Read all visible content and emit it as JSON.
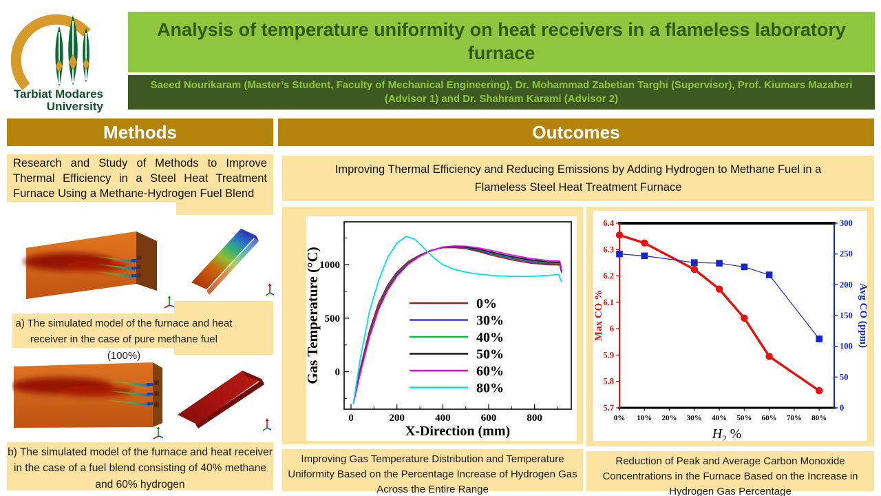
{
  "header": {
    "logo_text_line1": "Tarbiat Modares",
    "logo_text_line2": "University",
    "title": "Analysis of temperature uniformity on heat receivers in a flameless laboratory furnace",
    "authors": "Saeed Nourikaram (Master’s Student, Faculty of Mechanical Engineering), Dr. Mohammad Zabetian Targhi (Supervisor), Prof. Kiumars Mazaheri (Advisor 1) and Dr. Shahram Karami (Advisor 2)"
  },
  "methods": {
    "heading": "Methods",
    "intro": "Research and Study of Methods to Improve Thermal Efficiency in a Steel Heat Treatment Furnace Using a Methane-Hydrogen Fuel Blend",
    "caption_a": "a) The simulated model of the furnace and heat receiver in the case of pure methane fuel (100%)",
    "caption_b": "b) The simulated model of the furnace and heat receiver in the case of a fuel blend consisting of 40% methane and 60% hydrogen"
  },
  "outcomes": {
    "heading": "Outcomes",
    "intro": "Improving Thermal Efficiency and Reducing Emissions by Adding Hydrogen to Methane Fuel in a Flameless Steel Heat Treatment Furnace",
    "caption_temp": "Improving Gas Temperature Distribution and Temperature Uniformity Based on the Percentage Increase of Hydrogen Gas Across the Entire Range",
    "caption_co": "Reduction of Peak and Average Carbon Monoxide Concentrations in the Furnace Based on the Increase in Hydrogen Gas Percentage"
  },
  "colors": {
    "title_bg": "#8dc63f",
    "title_text": "#2f5b19",
    "authors_bg": "#3e5822",
    "authors_text": "#8dc63f",
    "section_bg": "#b4830b",
    "section_text": "#ffffff",
    "panel_bg": "#fce3a1",
    "max_co_red": "#e8100c",
    "avg_co_blue": "#1427c8"
  },
  "chart_data": [
    {
      "type": "line",
      "title": "",
      "xlabel": "X-Direction (mm)",
      "ylabel": "Gas Temperature (°C)",
      "xlim": [
        -30,
        960
      ],
      "ylim": [
        -350,
        1400
      ],
      "xticks": [
        0,
        200,
        400,
        600,
        800
      ],
      "xticks_minor": [
        100,
        300,
        500,
        700,
        900
      ],
      "yticks": [
        0,
        500,
        1000
      ],
      "yticks_minor": [
        -250,
        250,
        750,
        1250
      ],
      "grid": false,
      "legend_position": "inside-center",
      "series": [
        {
          "name": "0%",
          "color": "#a51b1b",
          "points": [
            [
              10,
              -300
            ],
            [
              40,
              30
            ],
            [
              80,
              380
            ],
            [
              120,
              640
            ],
            [
              160,
              810
            ],
            [
              200,
              930
            ],
            [
              250,
              1030
            ],
            [
              300,
              1090
            ],
            [
              350,
              1135
            ],
            [
              400,
              1158
            ],
            [
              450,
              1160
            ],
            [
              500,
              1150
            ],
            [
              560,
              1120
            ],
            [
              620,
              1085
            ],
            [
              700,
              1045
            ],
            [
              780,
              1015
            ],
            [
              860,
              1000
            ],
            [
              910,
              997
            ],
            [
              918,
              925
            ]
          ]
        },
        {
          "name": "30%",
          "color": "#3d3dc0",
          "points": [
            [
              10,
              -300
            ],
            [
              40,
              10
            ],
            [
              80,
              350
            ],
            [
              120,
              610
            ],
            [
              160,
              790
            ],
            [
              200,
              915
            ],
            [
              250,
              1020
            ],
            [
              300,
              1085
            ],
            [
              350,
              1133
            ],
            [
              400,
              1160
            ],
            [
              450,
              1165
            ],
            [
              500,
              1157
            ],
            [
              560,
              1130
            ],
            [
              620,
              1098
            ],
            [
              700,
              1058
            ],
            [
              780,
              1028
            ],
            [
              860,
              1010
            ],
            [
              910,
              1006
            ],
            [
              918,
              930
            ]
          ]
        },
        {
          "name": "40%",
          "color": "#00c040",
          "points": [
            [
              10,
              -300
            ],
            [
              40,
              0
            ],
            [
              80,
              340
            ],
            [
              120,
              600
            ],
            [
              160,
              780
            ],
            [
              200,
              905
            ],
            [
              250,
              1015
            ],
            [
              300,
              1082
            ],
            [
              350,
              1133
            ],
            [
              400,
              1162
            ],
            [
              450,
              1168
            ],
            [
              500,
              1161
            ],
            [
              560,
              1138
            ],
            [
              620,
              1108
            ],
            [
              700,
              1068
            ],
            [
              780,
              1038
            ],
            [
              860,
              1018
            ],
            [
              910,
              1013
            ],
            [
              918,
              938
            ]
          ]
        },
        {
          "name": "50%",
          "color": "#161616",
          "points": [
            [
              10,
              -300
            ],
            [
              40,
              -10
            ],
            [
              80,
              330
            ],
            [
              120,
              590
            ],
            [
              160,
              770
            ],
            [
              200,
              898
            ],
            [
              250,
              1010
            ],
            [
              300,
              1080
            ],
            [
              350,
              1132
            ],
            [
              400,
              1163
            ],
            [
              450,
              1170
            ],
            [
              500,
              1164
            ],
            [
              560,
              1143
            ],
            [
              620,
              1113
            ],
            [
              700,
              1075
            ],
            [
              780,
              1045
            ],
            [
              860,
              1025
            ],
            [
              910,
              1020
            ],
            [
              918,
              942
            ]
          ]
        },
        {
          "name": "60%",
          "color": "#f400f4",
          "points": [
            [
              10,
              -300
            ],
            [
              40,
              -20
            ],
            [
              80,
              320
            ],
            [
              120,
              580
            ],
            [
              160,
              762
            ],
            [
              200,
              892
            ],
            [
              250,
              1005
            ],
            [
              300,
              1078
            ],
            [
              350,
              1131
            ],
            [
              400,
              1165
            ],
            [
              450,
              1175
            ],
            [
              500,
              1172
            ],
            [
              560,
              1155
            ],
            [
              620,
              1128
            ],
            [
              700,
              1090
            ],
            [
              780,
              1058
            ],
            [
              860,
              1038
            ],
            [
              910,
              1033
            ],
            [
              918,
              948
            ]
          ]
        },
        {
          "name": "80%",
          "color": "#00dff0",
          "points": [
            [
              10,
              -300
            ],
            [
              40,
              120
            ],
            [
              80,
              560
            ],
            [
              120,
              850
            ],
            [
              160,
              1070
            ],
            [
              200,
              1200
            ],
            [
              240,
              1265
            ],
            [
              280,
              1235
            ],
            [
              320,
              1150
            ],
            [
              360,
              1065
            ],
            [
              400,
              1000
            ],
            [
              450,
              955
            ],
            [
              500,
              930
            ],
            [
              560,
              910
            ],
            [
              620,
              898
            ],
            [
              700,
              890
            ],
            [
              780,
              890
            ],
            [
              860,
              900
            ],
            [
              905,
              908
            ],
            [
              918,
              838
            ]
          ]
        }
      ]
    },
    {
      "type": "line",
      "title": "",
      "xlabel": "H2 %",
      "x_categories": [
        "0%",
        "10%",
        "20%",
        "30%",
        "40%",
        "50%",
        "60%",
        "70%",
        "80%"
      ],
      "left_axis": {
        "label": "Max CO %",
        "color": "#e8100c",
        "ticks": [
          5.7,
          5.8,
          5.9,
          6,
          6.1,
          6.2,
          6.3,
          6.4
        ],
        "range": [
          5.7,
          6.4
        ]
      },
      "right_axis": {
        "label": "Avg CO (ppm)",
        "color": "#1427c8",
        "ticks": [
          0,
          50,
          100,
          150,
          200,
          250,
          300
        ],
        "range": [
          0,
          300
        ]
      },
      "grid": false,
      "series": [
        {
          "name": "Max CO %",
          "axis": "left",
          "color": "#e8100c",
          "marker": "circle",
          "x_percent": [
            0,
            10,
            30,
            40,
            50,
            60,
            80
          ],
          "values": [
            6.355,
            6.325,
            6.225,
            6.15,
            6.04,
            5.895,
            5.765
          ]
        },
        {
          "name": "Avg CO (ppm)",
          "axis": "right",
          "color": "#1427c8",
          "marker": "square",
          "x_percent": [
            0,
            10,
            30,
            40,
            50,
            60,
            80
          ],
          "values": [
            250,
            247,
            236,
            235,
            229,
            216,
            112
          ]
        }
      ]
    }
  ]
}
